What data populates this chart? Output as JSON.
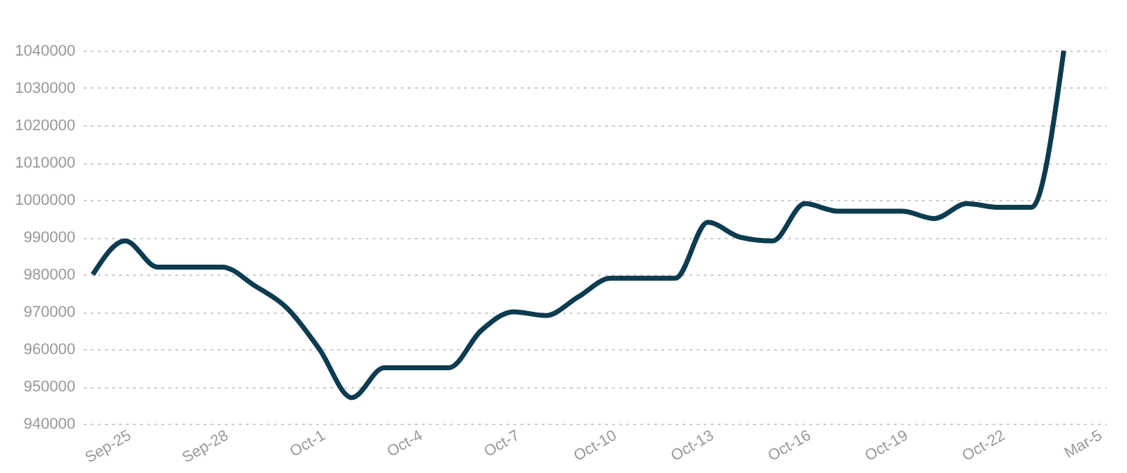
{
  "chart_data": {
    "type": "line",
    "categories": [
      null,
      "Sep-25",
      null,
      null,
      "Sep-28",
      null,
      null,
      "Oct-1",
      null,
      null,
      "Oct-4",
      null,
      null,
      "Oct-7",
      null,
      null,
      "Oct-10",
      null,
      null,
      "Oct-13",
      null,
      null,
      "Oct-16",
      null,
      null,
      "Oct-19",
      null,
      null,
      "Oct-22",
      null,
      null,
      "Mar-5"
    ],
    "series": [
      {
        "color": "#0d3b4f",
        "values": [
          980000,
          989000,
          982000,
          982000,
          982000,
          977000,
          971000,
          960000,
          947000,
          955000,
          955000,
          955000,
          965000,
          970000,
          969000,
          974000,
          979000,
          979000,
          979000,
          994000,
          990000,
          989000,
          999000,
          997000,
          997000,
          997000,
          995000,
          999000,
          998000,
          998000,
          1040000,
          null
        ]
      }
    ],
    "ylim": [
      940000,
      1040000
    ],
    "yticks": [
      940000,
      950000,
      960000,
      970000,
      980000,
      990000,
      1000000,
      1010000,
      1020000,
      1030000,
      1040000
    ],
    "grid": "y",
    "marker": "none",
    "line_style": "solid"
  }
}
